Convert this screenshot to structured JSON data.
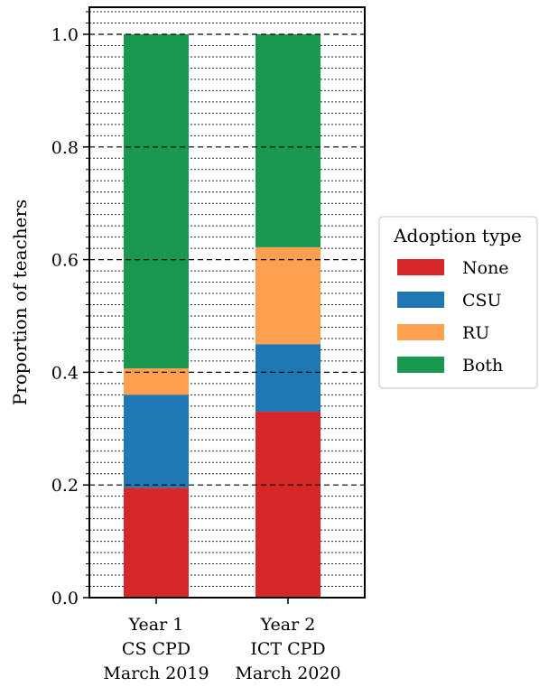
{
  "chart_data": {
    "type": "bar",
    "stacked": true,
    "categories": [
      [
        "Year 1",
        "CS CPD",
        "March 2019"
      ],
      [
        "Year 2",
        "ICT CPD",
        "March 2020"
      ]
    ],
    "series": [
      {
        "name": "None",
        "color": "#d62728",
        "values": [
          0.195,
          0.33
        ]
      },
      {
        "name": "CSU",
        "color": "#1f77b4",
        "values": [
          0.165,
          0.12
        ]
      },
      {
        "name": "RU",
        "color": "#ff9f50",
        "values": [
          0.047,
          0.172
        ]
      },
      {
        "name": "Both",
        "color": "#1a9850",
        "values": [
          0.593,
          0.378
        ]
      }
    ],
    "ylabel": "Proportion of teachers",
    "ylim": [
      0,
      1.0
    ],
    "yticks": [
      "0.0",
      "0.2",
      "0.4",
      "0.6",
      "0.8",
      "1.0"
    ],
    "grid": "horizontal dashed",
    "legend": {
      "title": "Adoption type",
      "position": "right"
    }
  }
}
